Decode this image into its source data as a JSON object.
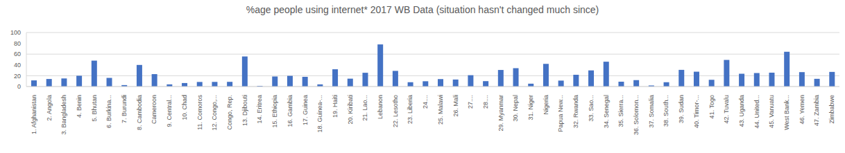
{
  "chart_data": {
    "type": "bar",
    "title": "%age people using internet* 2017 WB Data (situation hasn't changed much since)",
    "categories": [
      "1. Afghanistan",
      "2. Angola",
      "3. Bangladesh",
      "4. Benin",
      "5. Bhutan",
      "6. Burkina...",
      "7. Burundi",
      "8. Cambodia",
      "Cameroon",
      "9. Central...",
      "10. Chad",
      "11. Comoros",
      "12. Congo,...",
      "Congo, Rep.",
      "13. Djibouti",
      "14. Eritrea",
      "15. Ethiopia",
      "16. Gambia",
      "17. Guinea",
      "18. Guinea-...",
      "19. Haiti",
      "20. Kiribati",
      "21. Lao...",
      "Lebanon",
      "22. Lesotho",
      "23. Liberia",
      "24....",
      "25. Malawi",
      "26. Mali",
      "27....",
      "28....",
      "29. Myanmar",
      "30. Nepal",
      "31. Niger",
      "Nigeria",
      "Papua New...",
      "32. Rwanda",
      "33. Sao...",
      "34. Senegal",
      "35. Sierra...",
      "36. Solomon...",
      "37. Somalia",
      "38. South...",
      "39. Sudan",
      "40. Timor-...",
      "41. Togo",
      "42. Tuvalu",
      "43. Uganda",
      "44. United...",
      "45. Vanuatu",
      "West Bank...",
      "46. Yemen",
      "47. Zambia",
      "Zimbabwe"
    ],
    "values": [
      11.4,
      14,
      15,
      20,
      48,
      16,
      2.7,
      40,
      23,
      4,
      6.5,
      8.5,
      8.6,
      8.7,
      55.7,
      1.3,
      18.6,
      19.8,
      18,
      4,
      32,
      14.6,
      25.5,
      78,
      29,
      8,
      9.8,
      13.8,
      13,
      21,
      10,
      30.7,
      34,
      5.3,
      42,
      11,
      21.8,
      29.9,
      46,
      9,
      11.9,
      2,
      8,
      30.9,
      27.5,
      12.4,
      49.3,
      23.7,
      25,
      25.7,
      64.4,
      26.7,
      14.3,
      27.1
    ],
    "color": "#4472c4",
    "ylim": [
      0,
      100
    ],
    "yticks": [
      0,
      20,
      40,
      60,
      80,
      100
    ],
    "grid": true
  }
}
